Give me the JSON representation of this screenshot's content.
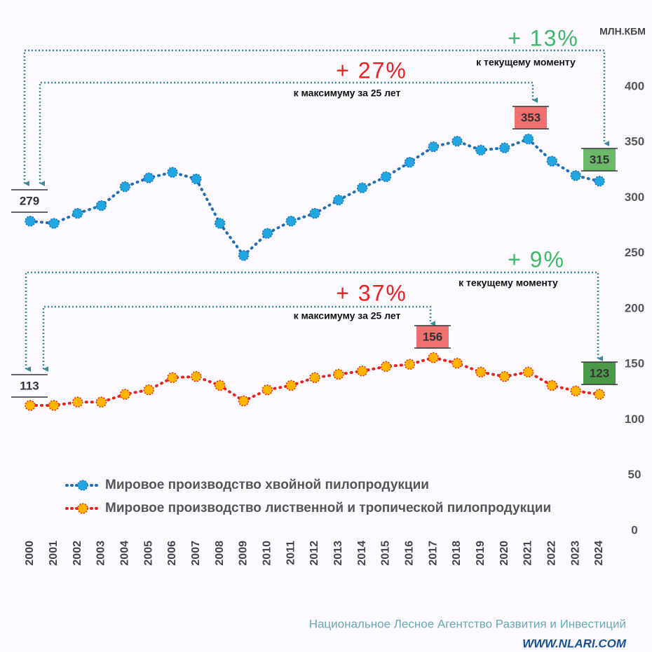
{
  "chart_data": {
    "type": "line",
    "unit": "МЛН.КБМ",
    "categories": [
      "2000",
      "2001",
      "2002",
      "2003",
      "2004",
      "2005",
      "2006",
      "2007",
      "2008",
      "2009",
      "2010",
      "2011",
      "2012",
      "2013",
      "2014",
      "2015",
      "2016",
      "2017",
      "2018",
      "2019",
      "2020",
      "2021",
      "2022",
      "2023",
      "2024"
    ],
    "series": [
      {
        "name": "Мировое производство хвойной пилопродукции",
        "color": "#22a6e0",
        "line_color": "#1f6fb8",
        "values": [
          279,
          277,
          286,
          293,
          310,
          318,
          323,
          317,
          277,
          248,
          268,
          279,
          286,
          298,
          309,
          319,
          332,
          346,
          351,
          343,
          345,
          353,
          333,
          320,
          315
        ]
      },
      {
        "name": "Мировое производство лиственной и тропической пилопродукции",
        "color": "#ffb400",
        "line_color": "#e8201e",
        "values": [
          113,
          113,
          116,
          116,
          123,
          127,
          138,
          139,
          131,
          117,
          127,
          131,
          138,
          141,
          144,
          148,
          150,
          156,
          151,
          143,
          139,
          143,
          131,
          126,
          123
        ]
      }
    ],
    "annotations": [
      {
        "text": "+ 13%",
        "subtext": "к текущему моменту"
      },
      {
        "text": "+ 27%",
        "subtext": "к максимуму за 25 лет"
      },
      {
        "text": "+ 9%",
        "subtext": "к текущему моменту"
      },
      {
        "text": "+ 37%",
        "subtext": "к максимуму за 25 лет"
      }
    ],
    "ylim": [
      0,
      400
    ],
    "yticks": [
      0,
      50,
      100,
      150,
      200,
      250,
      300,
      350,
      400
    ],
    "footer": {
      "organization": "Национальное Лесное Агентство Развития и Инвестиций",
      "website": "WWW.NLARI.COM"
    }
  }
}
